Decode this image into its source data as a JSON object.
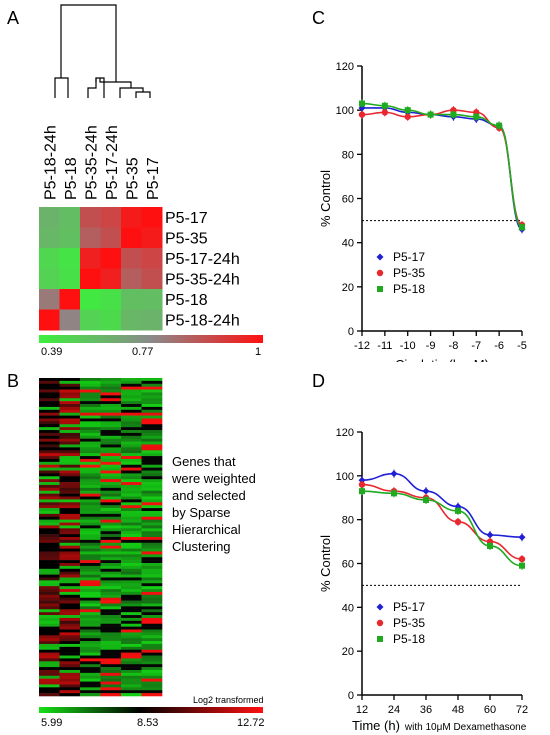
{
  "panels": {
    "A": {
      "letter": "A",
      "column_labels": [
        "P5-18-24h",
        "P5-18",
        "P5-35-24h",
        "P5-17-24h",
        "P5-35",
        "P5-17"
      ],
      "row_labels": [
        "P5-17",
        "P5-35",
        "P5-17-24h",
        "P5-35-24h",
        "P5-18",
        "P5-18-24h"
      ],
      "matrix": [
        [
          0.62,
          0.58,
          0.88,
          0.9,
          0.98,
          1.0
        ],
        [
          0.6,
          0.57,
          0.85,
          0.88,
          1.0,
          0.98
        ],
        [
          0.48,
          0.44,
          0.97,
          1.0,
          0.88,
          0.9
        ],
        [
          0.5,
          0.45,
          1.0,
          0.97,
          0.85,
          0.88
        ],
        [
          0.8,
          1.0,
          0.42,
          0.45,
          0.57,
          0.58
        ],
        [
          1.0,
          0.78,
          0.5,
          0.47,
          0.6,
          0.62
        ]
      ],
      "colorbar": {
        "min_label": "0.39",
        "mid_label": "0.77",
        "max_label": "1",
        "low_color": "#3cf03c",
        "mid_color": "#8a8a8a",
        "high_color": "#ff1010"
      }
    },
    "B": {
      "letter": "B",
      "annotation_lines": [
        "Genes that",
        "were weighted",
        "and selected",
        "by Sparse",
        "Hierarchical",
        "Clustering"
      ],
      "colorbar": {
        "title": "Log2 transformed",
        "min_label": "5.99",
        "mid_label": "8.53",
        "max_label": "12.72"
      }
    },
    "C": {
      "letter": "C"
    },
    "D": {
      "letter": "D",
      "xlabel_main": "Time (h)",
      "xlabel_suffix": "with 10μM Dexamethasone"
    }
  },
  "chart_data": [
    {
      "type": "line",
      "panel": "C",
      "xlabel": "Cisplatin (log M)",
      "ylabel": "% Control",
      "xlim": [
        -12,
        -5
      ],
      "ylim": [
        0,
        120
      ],
      "x_ticks": [
        -12,
        -11,
        -10,
        -9,
        -8,
        -7,
        -6,
        -5
      ],
      "y_ticks": [
        0,
        20,
        40,
        60,
        80,
        100,
        120
      ],
      "reference_line": 50,
      "legend_position": "bottom-left",
      "x": [
        -12,
        -11,
        -10,
        -9,
        -8,
        -7,
        -6,
        -5
      ],
      "series": [
        {
          "name": "P5-17",
          "color": "#1f1fd6",
          "marker": "diamond",
          "values": [
            101,
            101,
            99,
            98,
            97,
            96,
            93,
            46
          ]
        },
        {
          "name": "P5-35",
          "color": "#e8272f",
          "marker": "circle",
          "values": [
            98,
            99,
            97,
            98,
            100,
            99,
            92,
            48
          ]
        },
        {
          "name": "P5-18",
          "color": "#1faa1f",
          "marker": "square",
          "values": [
            103,
            102,
            100,
            98,
            98,
            97,
            93,
            47
          ]
        }
      ]
    },
    {
      "type": "line",
      "panel": "D",
      "xlabel": "Time (h)",
      "ylabel": "% Control",
      "xlim": [
        12,
        72
      ],
      "ylim": [
        0,
        120
      ],
      "x_ticks": [
        12,
        24,
        36,
        48,
        60,
        72
      ],
      "y_ticks": [
        0,
        20,
        40,
        60,
        80,
        100,
        120
      ],
      "reference_line": 50,
      "legend_position": "bottom-left",
      "x": [
        12,
        24,
        36,
        48,
        60,
        72
      ],
      "series": [
        {
          "name": "P5-17",
          "color": "#1f1fd6",
          "marker": "diamond",
          "values": [
            98,
            101,
            93,
            86,
            73,
            72
          ]
        },
        {
          "name": "P5-35",
          "color": "#e8272f",
          "marker": "circle",
          "values": [
            96,
            93,
            90,
            79,
            70,
            62
          ]
        },
        {
          "name": "P5-18",
          "color": "#1faa1f",
          "marker": "square",
          "values": [
            93,
            92,
            89,
            84,
            68,
            59
          ]
        }
      ]
    }
  ]
}
